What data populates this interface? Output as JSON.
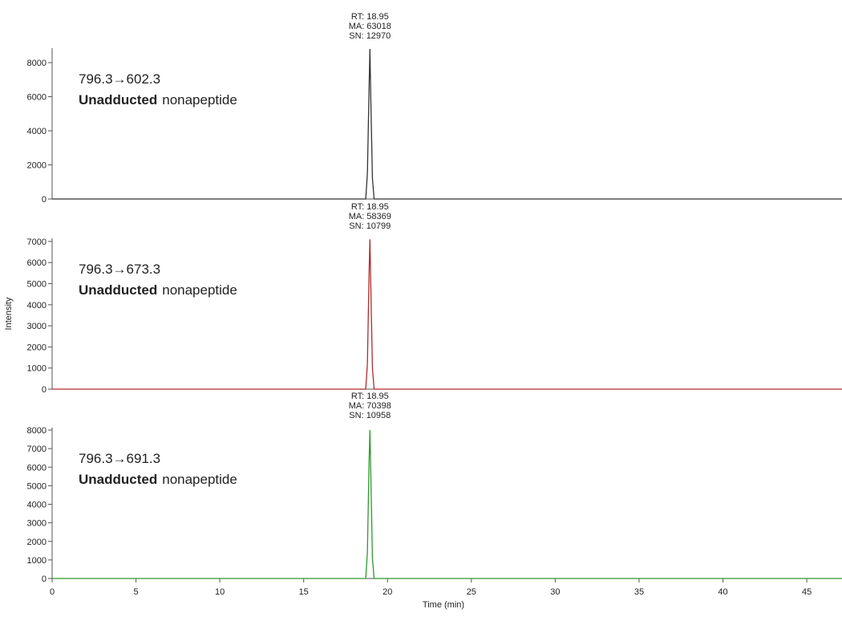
{
  "chart_data": [
    {
      "type": "line",
      "annotations": [
        "RT: 18.95",
        "MA: 63018",
        "SN: 12970"
      ],
      "label_top": "796.3→602.3",
      "label_bold": "Unadducted",
      "label_rest": "nonapeptide",
      "x": [
        0,
        18.7,
        18.8,
        18.9,
        18.95,
        19.0,
        19.1,
        19.2,
        47.1
      ],
      "values": [
        0,
        0,
        1500,
        6500,
        8800,
        6000,
        1200,
        0,
        0
      ],
      "color": "#333333",
      "xlim": [
        0,
        47.1
      ],
      "ylim": [
        0,
        8850
      ],
      "yticks": [
        0,
        2000,
        4000,
        6000,
        8000
      ]
    },
    {
      "type": "line",
      "annotations": [
        "RT: 18.95",
        "MA: 58369",
        "SN: 10799"
      ],
      "label_top": "796.3→673.3",
      "label_bold": "Unadducted",
      "label_rest": "nonapeptide",
      "y_label": "Intensity",
      "x": [
        0,
        18.7,
        18.8,
        18.9,
        18.95,
        19.0,
        19.1,
        19.2,
        47.1
      ],
      "values": [
        0,
        0,
        1200,
        5500,
        7100,
        5000,
        1000,
        0,
        0
      ],
      "color": "#b22b2b",
      "xlim": [
        0,
        47.1
      ],
      "ylim": [
        0,
        7150
      ],
      "yticks": [
        0,
        1000,
        2000,
        3000,
        4000,
        5000,
        6000,
        7000
      ]
    },
    {
      "type": "line",
      "annotations": [
        "RT: 18.95",
        "MA: 70398",
        "SN: 10958"
      ],
      "label_top": "796.3→691.3",
      "label_bold": "Unadducted",
      "label_rest": "nonapeptide",
      "x_label": "Time (min)",
      "x": [
        0,
        18.7,
        18.8,
        18.9,
        18.95,
        19.0,
        19.1,
        19.2,
        47.1
      ],
      "values": [
        0,
        0,
        1400,
        6300,
        8000,
        5800,
        1100,
        0,
        0
      ],
      "color": "#2e9a2e",
      "xlim": [
        0,
        47.1
      ],
      "ylim": [
        0,
        8130
      ],
      "yticks": [
        0,
        1000,
        2000,
        3000,
        4000,
        5000,
        6000,
        7000,
        8000
      ],
      "xticks": [
        0,
        5,
        10,
        15,
        20,
        25,
        30,
        35,
        40,
        45
      ]
    }
  ]
}
